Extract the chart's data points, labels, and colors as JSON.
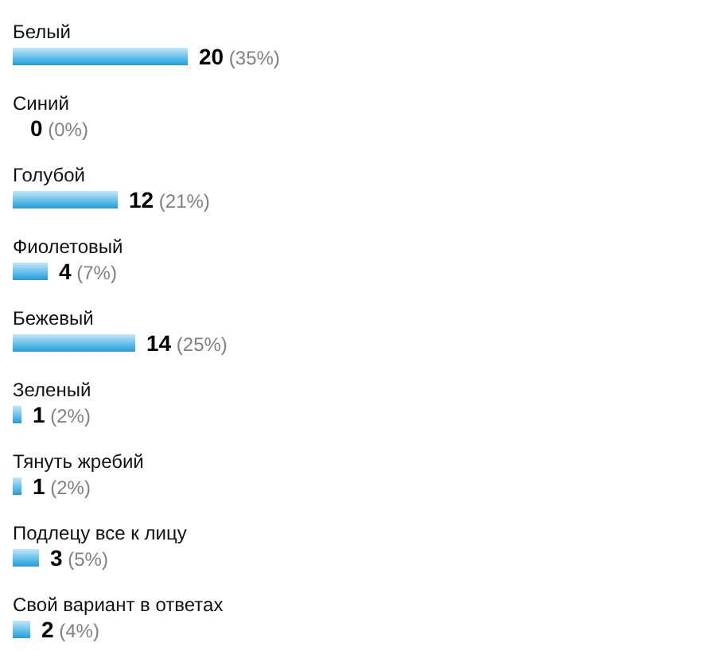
{
  "chart_data": {
    "type": "bar",
    "orientation": "horizontal",
    "tick_labels": "y",
    "categories": [
      "Белый",
      "Синий",
      "Голубой",
      "Фиолетовый",
      "Бежевый",
      "Зеленый",
      "Тянуть жребий",
      "Подлецу все к лицу",
      "Свой вариант в ответах"
    ],
    "values": [
      20,
      0,
      12,
      4,
      14,
      1,
      1,
      3,
      2
    ],
    "color": "#1a9fe0",
    "value_labels": [
      "20 (35%)",
      "0 (0%)",
      "12 (21%)",
      "4 (7%)",
      "14 (25%)",
      "1 (2%)",
      "1 (2%)",
      "3 (5%)",
      "2 (4%)"
    ]
  }
}
